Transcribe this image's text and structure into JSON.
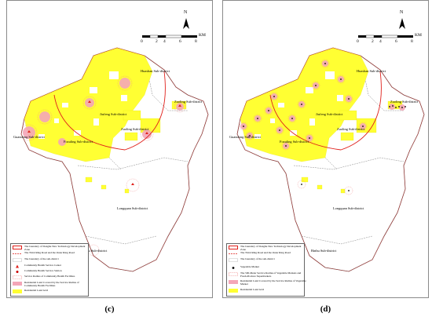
{
  "panels": [
    {
      "caption": "(c)",
      "districts": {
        "huashan": "Huashan Sub-district",
        "zuoling": "Zuoling Sub-district",
        "jiufeng": "Jiufeng Sub-district",
        "guandong": "Guandong Sub-district",
        "fozuling": "Fozuling Sub-district",
        "zuoling2": "Zuoling Sub-district",
        "longquan": "Longquan Sub-district",
        "binhu": "Binhu Sub-district"
      },
      "legend": [
        "The boundary of Donghu New Technology Development Zone",
        "The Third Ring Road and the Outer Ring Road",
        "The boundary of the sub-district",
        "Community Health Service Center",
        "Community Health Service Station",
        "Service Radius of Community Health Facilities",
        "Residential Land Covered by the Service Radius of Community Health Facilities",
        "Residential Land Grid"
      ]
    },
    {
      "caption": "(d)",
      "districts": {
        "huashan": "Huashan Sub-district",
        "zuoling": "Zuoling Sub-district",
        "jiufeng": "Jiufeng Sub-district",
        "guandong": "Guandong Sub-district",
        "fozuling": "Fozuling Sub-district",
        "zuoling2": "Zuoling Sub-district",
        "longquan": "Longquan Sub-district",
        "binhu": "Binhu Sub-district"
      },
      "legend": [
        "The boundary of Donghu New Technology Development Zone",
        "The Third Ring Road and the Outer Ring Road",
        "The boundary of the sub-district",
        "Vegetable Market",
        "The 500-Meter Service Radius of Vegetable Markets and Fresh-Produce Supermarkets",
        "Residential Land Covered by the Service Radius of Vegetable Market",
        "Residential Land Grid"
      ]
    }
  ],
  "map": {
    "north_label": "N",
    "scale_ticks": [
      "0",
      "2",
      "4",
      "6",
      "8"
    ],
    "scale_unit": "KM"
  },
  "colors": {
    "residential": "#ffff33",
    "covered": "#f4a6b8",
    "boundary": "#e0201b",
    "service_radius": "#e88"
  }
}
